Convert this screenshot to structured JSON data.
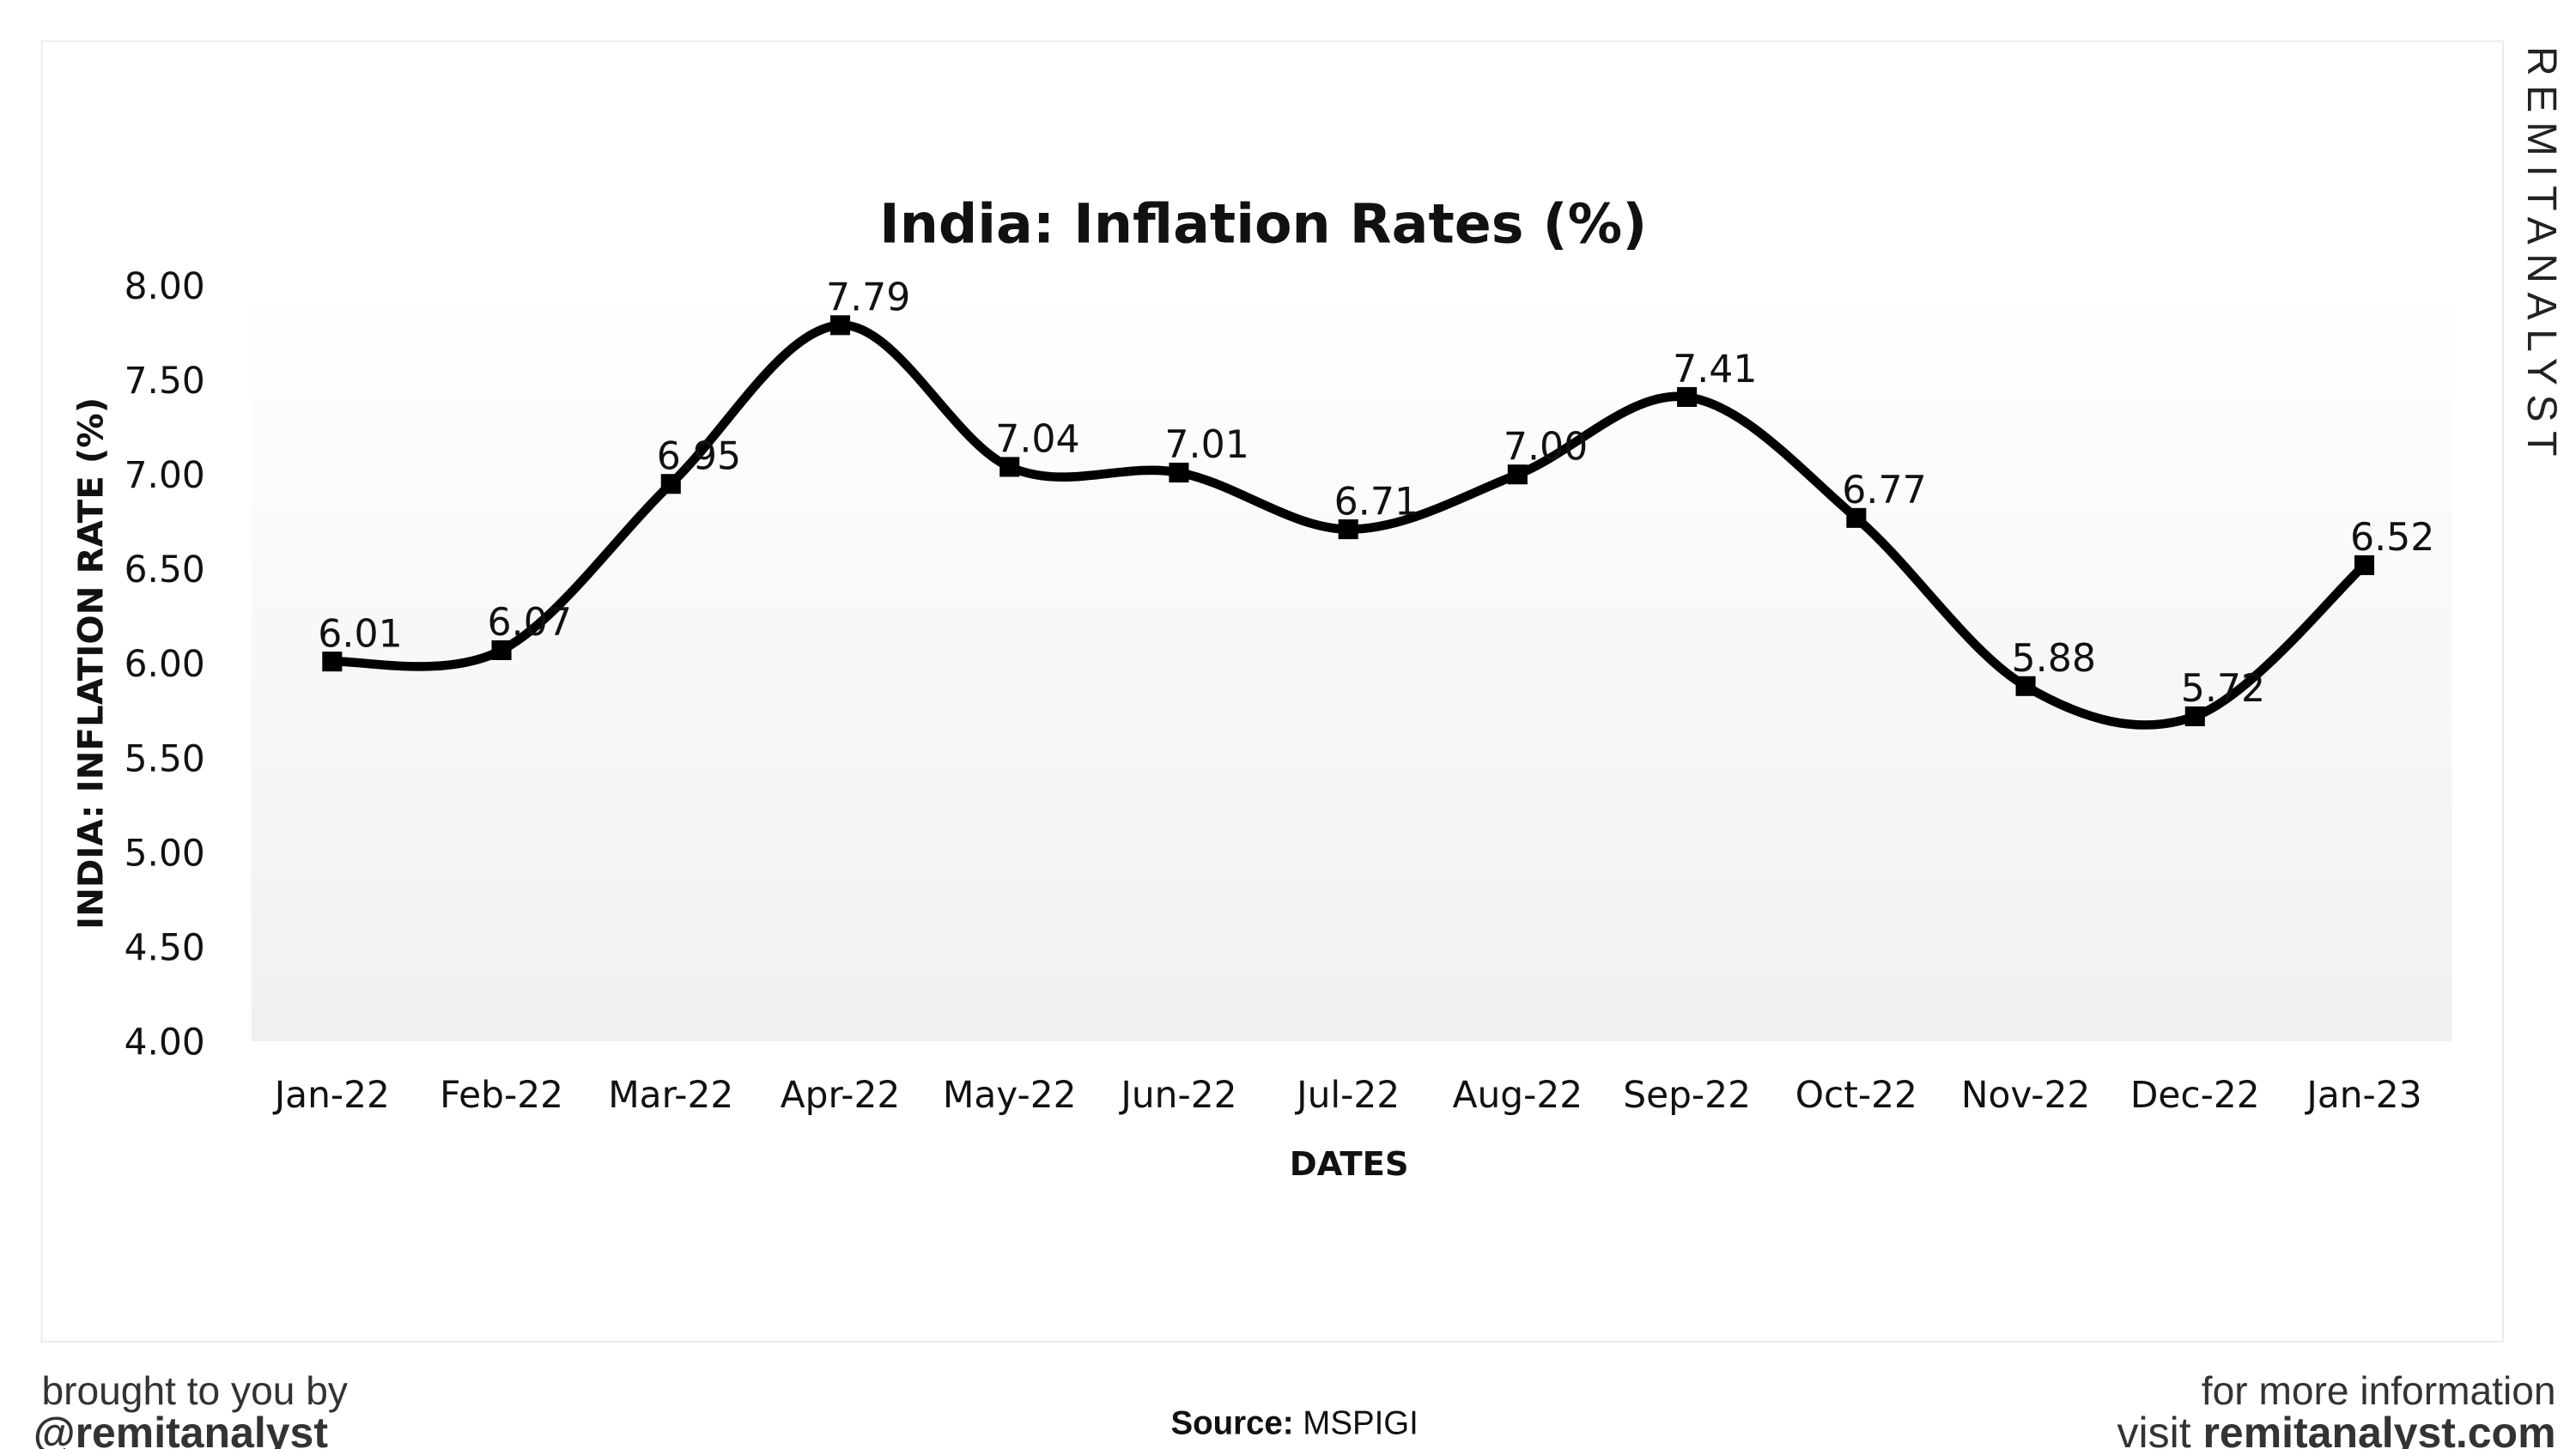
{
  "chart_data": {
    "type": "line",
    "title": "India: Inflation Rates (%)",
    "xlabel": "DATES",
    "ylabel": "INDIA: INFLATION RATE (%)",
    "categories": [
      "Jan-22",
      "Feb-22",
      "Mar-22",
      "Apr-22",
      "May-22",
      "Jun-22",
      "Jul-22",
      "Aug-22",
      "Sep-22",
      "Oct-22",
      "Nov-22",
      "Dec-22",
      "Jan-23"
    ],
    "values": [
      6.01,
      6.07,
      6.95,
      7.79,
      7.04,
      7.01,
      6.71,
      7.0,
      7.41,
      6.77,
      5.88,
      5.72,
      6.52
    ],
    "data_labels": [
      "6.01",
      "6.07",
      "6.95",
      "7.79",
      "7.04",
      "7.01",
      "6.71",
      "7.00",
      "7.41",
      "6.77",
      "5.88",
      "5.72",
      "6.52"
    ],
    "ylim": [
      4.0,
      8.0
    ],
    "yticks": [
      "4.00",
      "4.50",
      "5.00",
      "5.50",
      "6.00",
      "6.50",
      "7.00",
      "7.50",
      "8.00"
    ],
    "grid": false,
    "smooth": true,
    "line_color": "#000000",
    "legend": "none"
  },
  "branding": {
    "watermark": "REMITANALYST",
    "left_line1": "brought to you by",
    "left_line2": "@remitanalyst",
    "source_label": "Source:",
    "source_value": "MSPIGI",
    "right_line1": "for more information",
    "right_line2_prefix": "visit ",
    "right_line2_site": "remitanalyst.com"
  }
}
